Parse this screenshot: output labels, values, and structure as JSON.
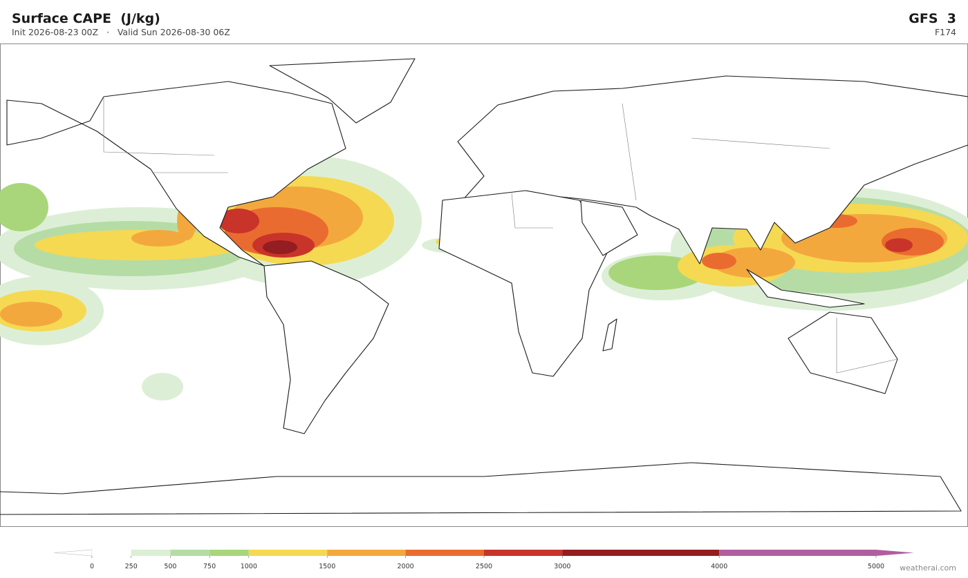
{
  "header": {
    "title": "Surface CAPE  (J/kg)",
    "subtitle": "Init 2026-08-23 00Z   ·   Valid Sun 2026-08-30 06Z",
    "model": "GFS  3",
    "forecast_hour": "F174"
  },
  "colorbar": {
    "lim": [
      0,
      5000
    ],
    "ticks": [
      0,
      250,
      500,
      750,
      1000,
      1500,
      2000,
      2500,
      3000,
      4000,
      5000
    ],
    "colors": [
      "#ffffff",
      "#dcefd6",
      "#b6dca6",
      "#a9d67a",
      "#f5d952",
      "#f3a83d",
      "#ea6b2f",
      "#c8342a",
      "#931d20",
      "#b15e9f"
    ],
    "under_color": "#ffffff",
    "over_color": "#b15e9f"
  },
  "footer": {
    "credit": "weatherai.com"
  }
}
